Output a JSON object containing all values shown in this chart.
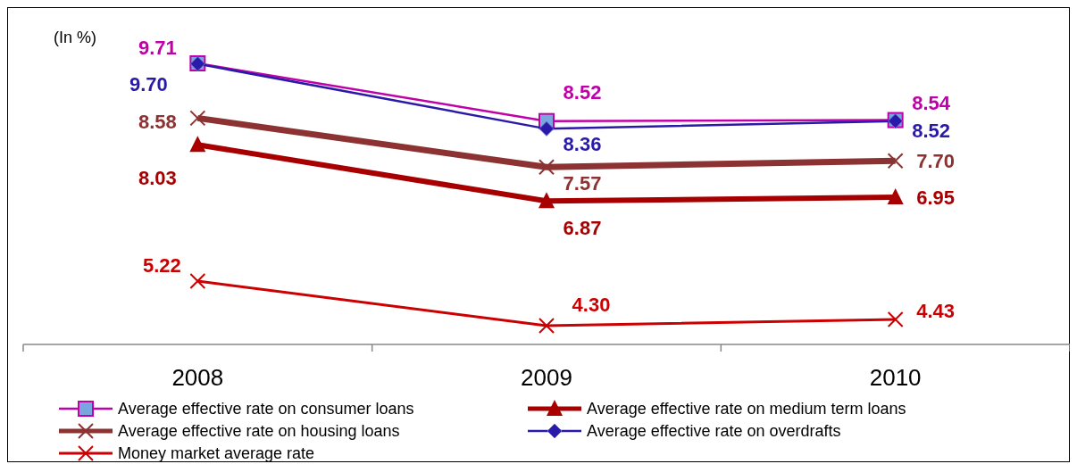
{
  "chart_data": {
    "type": "line",
    "categories": [
      "2008",
      "2009",
      "2010"
    ],
    "tick_labels": "x",
    "legend": "bottom",
    "data_labels": true,
    "annotations": [
      "(In %)"
    ],
    "series": [
      {
        "name": "Average effective rate on consumer loans",
        "color": "#c000a8",
        "marker": "square",
        "values": [
          9.71,
          8.52,
          8.54
        ]
      },
      {
        "name": "Average effective rate on medium term loans",
        "color": "#a80000",
        "marker": "triangle",
        "values": [
          8.03,
          6.87,
          6.95
        ]
      },
      {
        "name": "Average effective rate on housing loans",
        "color": "#8c3232",
        "marker": "cross",
        "values": [
          8.58,
          7.57,
          7.7
        ],
        "value_labels": [
          "8.58",
          "7.57",
          "7.70"
        ]
      },
      {
        "name": "Average effective rate on overdrafts",
        "color": "#2a1aa8",
        "marker": "diamond",
        "values": [
          9.7,
          8.36,
          8.52
        ],
        "value_labels": [
          "9.70",
          "8.36",
          "8.52"
        ]
      },
      {
        "name": "Money market average rate",
        "color": "#cc0000",
        "marker": "cross",
        "values": [
          5.22,
          4.3,
          4.43
        ],
        "value_labels": [
          "5.22",
          "4.30",
          "4.43"
        ]
      }
    ]
  }
}
